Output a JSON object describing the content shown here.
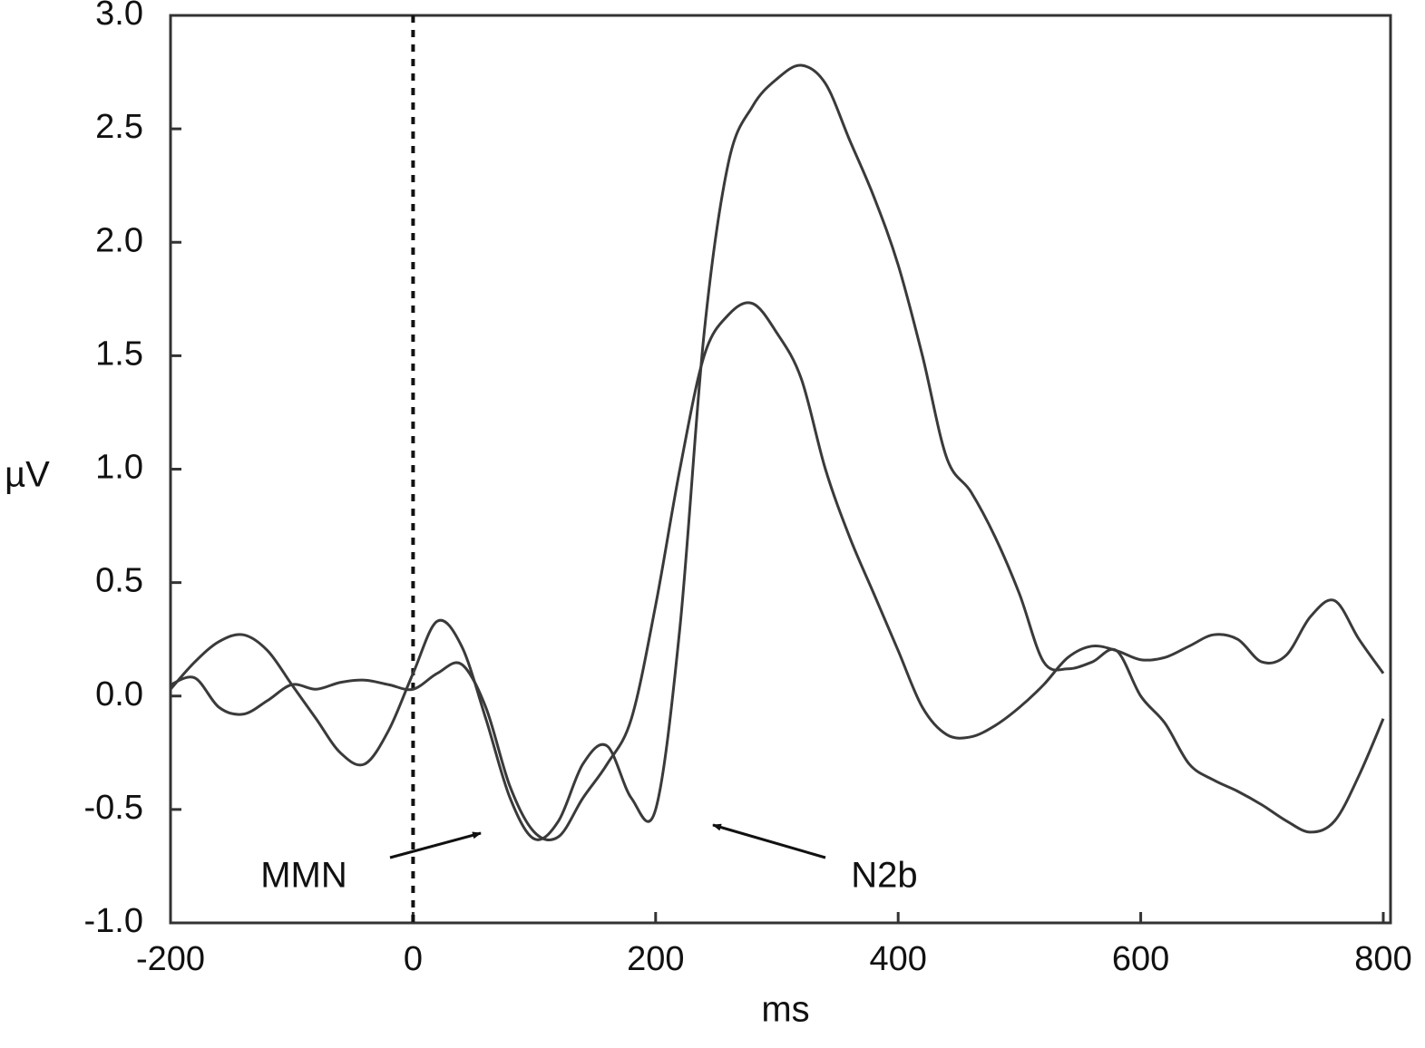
{
  "chart_data": {
    "type": "line",
    "x": [
      -200,
      -180,
      -160,
      -140,
      -120,
      -100,
      -80,
      -60,
      -40,
      -20,
      0,
      20,
      40,
      60,
      80,
      100,
      120,
      140,
      160,
      180,
      200,
      220,
      240,
      260,
      280,
      300,
      320,
      340,
      360,
      380,
      400,
      420,
      440,
      460,
      480,
      500,
      520,
      540,
      560,
      580,
      600,
      620,
      640,
      660,
      680,
      700,
      720,
      740,
      760,
      780,
      800
    ],
    "series": [
      {
        "color": "#3a3a3a",
        "values": [
          0.03,
          0.15,
          0.24,
          0.27,
          0.2,
          0.05,
          -0.1,
          -0.25,
          -0.3,
          -0.15,
          0.1,
          0.33,
          0.22,
          -0.1,
          -0.45,
          -0.63,
          -0.55,
          -0.3,
          -0.22,
          -0.45,
          -0.5,
          0.3,
          1.6,
          2.35,
          2.6,
          2.72,
          2.78,
          2.7,
          2.45,
          2.2,
          1.9,
          1.5,
          1.05,
          0.9,
          0.7,
          0.45,
          0.15,
          0.12,
          0.15,
          0.2,
          0.0,
          -0.12,
          -0.3,
          -0.37,
          -0.42,
          -0.48,
          -0.55,
          -0.6,
          -0.55,
          -0.35,
          -0.1
        ]
      },
      {
        "color": "#3a3a3a",
        "values": [
          0.05,
          0.08,
          -0.05,
          -0.08,
          -0.02,
          0.05,
          0.03,
          0.06,
          0.07,
          0.05,
          0.03,
          0.1,
          0.14,
          -0.05,
          -0.4,
          -0.6,
          -0.62,
          -0.45,
          -0.3,
          -0.1,
          0.4,
          1.0,
          1.5,
          1.68,
          1.73,
          1.6,
          1.4,
          1.0,
          0.7,
          0.45,
          0.2,
          -0.05,
          -0.17,
          -0.18,
          -0.13,
          -0.05,
          0.05,
          0.17,
          0.22,
          0.2,
          0.16,
          0.17,
          0.22,
          0.27,
          0.25,
          0.15,
          0.18,
          0.35,
          0.42,
          0.25,
          0.1
        ]
      }
    ],
    "xlabel": "ms",
    "ylabel": "µV",
    "xlim": [
      -200,
      800
    ],
    "ylim": [
      -1.0,
      3.0
    ],
    "xticks": [
      -200,
      0,
      200,
      400,
      600,
      800
    ],
    "yticks": [
      {
        "value": -1.0,
        "label": "-1.0"
      },
      {
        "value": -0.5,
        "label": "-0.5"
      },
      {
        "value": 0,
        "label": "0.0"
      },
      {
        "value": 0.5,
        "label": "0.5"
      },
      {
        "value": 1.0,
        "label": "1.0"
      },
      {
        "value": 1.5,
        "label": "1.5"
      },
      {
        "value": 2.0,
        "label": "2.0"
      },
      {
        "value": 2.5,
        "label": "2.5"
      },
      {
        "value": 3.0,
        "label": "3.0"
      }
    ],
    "vlines": [
      0
    ],
    "annotations": [
      "MMN",
      "N2b"
    ]
  }
}
